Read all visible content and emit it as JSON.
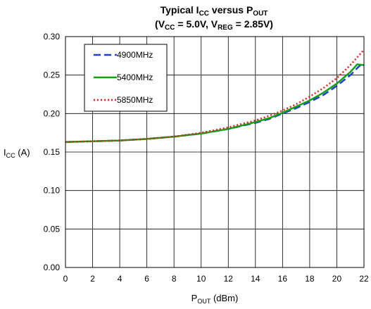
{
  "chart_data": {
    "type": "line",
    "title": {
      "line1": {
        "main": "Typical I",
        "sub1": "CC",
        "mid": " versus P",
        "sub2": "OUT"
      },
      "line2": {
        "open": "(V",
        "sub1": "CC",
        "mid": " = 5.0V, V",
        "sub2": "REG",
        "close": " = 2.85V)"
      }
    },
    "xlabel": {
      "main": "P",
      "sub": "OUT",
      "rest": " (dBm)"
    },
    "ylabel": {
      "main": "I",
      "sub": "CC",
      "rest": " (A)"
    },
    "xlim": [
      0,
      22
    ],
    "ylim": [
      0,
      0.3
    ],
    "xticks": [
      "0",
      "2",
      "4",
      "6",
      "8",
      "10",
      "12",
      "14",
      "16",
      "18",
      "20",
      "22"
    ],
    "yticks": [
      "0.00",
      "0.05",
      "0.10",
      "0.15",
      "0.20",
      "0.25",
      "0.30"
    ],
    "grid": true,
    "legend_position": "top-left",
    "series": [
      {
        "name": "4900MHz",
        "color": "#1f3fd6",
        "dash": "10,5",
        "x": [
          0,
          2,
          4,
          6,
          8,
          10,
          12,
          14,
          15,
          16,
          17,
          18,
          19,
          20,
          21,
          21.5,
          21.8
        ],
        "y": [
          0.163,
          0.164,
          0.165,
          0.167,
          0.17,
          0.174,
          0.18,
          0.188,
          0.193,
          0.2,
          0.207,
          0.215,
          0.224,
          0.236,
          0.25,
          0.259,
          0.264
        ]
      },
      {
        "name": "5400MHz",
        "color": "#11a011",
        "dash": "",
        "x": [
          0,
          2,
          4,
          6,
          8,
          10,
          12,
          14,
          15,
          16,
          17,
          18,
          19,
          20,
          21,
          21.5,
          22
        ],
        "y": [
          0.163,
          0.164,
          0.165,
          0.167,
          0.17,
          0.174,
          0.18,
          0.189,
          0.194,
          0.201,
          0.209,
          0.217,
          0.227,
          0.239,
          0.254,
          0.264,
          0.263
        ]
      },
      {
        "name": "5850MHz",
        "color": "#e02020",
        "dash": "2,3",
        "x": [
          0,
          2,
          4,
          6,
          8,
          10,
          12,
          14,
          15,
          16,
          17,
          18,
          19,
          20,
          21,
          22
        ],
        "y": [
          0.163,
          0.164,
          0.165,
          0.167,
          0.17,
          0.175,
          0.182,
          0.191,
          0.197,
          0.204,
          0.212,
          0.222,
          0.233,
          0.246,
          0.263,
          0.283
        ]
      }
    ]
  }
}
